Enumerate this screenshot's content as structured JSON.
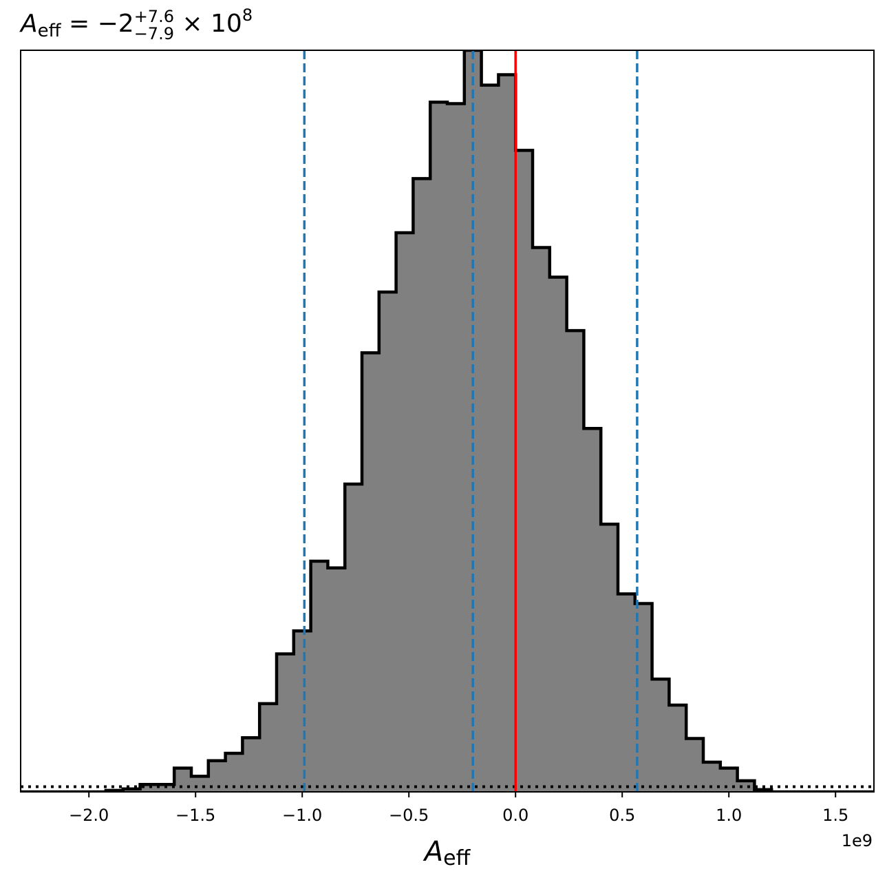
{
  "chart_data": {
    "type": "bar",
    "title": {
      "symbol": "A",
      "symbol_sub": "eff",
      "mid": " = −2",
      "sup": "+7.6",
      "sub": "−7.9",
      "tail": " × 10",
      "exp": "8"
    },
    "xlabel": {
      "symbol": "A",
      "sub": "eff"
    },
    "x_offset_label": "1e9",
    "x_unit_scale": 1000000000,
    "xlim": [
      -2.32,
      1.68
    ],
    "ylim": [
      0,
      1.0
    ],
    "y_axis_labels_shown": false,
    "grid": false,
    "legend": "none",
    "x_ticks": [
      -2.0,
      -1.5,
      -1.0,
      -0.5,
      0.0,
      0.5,
      1.0,
      1.5
    ],
    "x_tick_labels": [
      "−2.0",
      "−1.5",
      "−1.0",
      "−0.5",
      "0.0",
      "0.5",
      "1.0",
      "1.5"
    ],
    "bin_edges": [
      -2.32,
      -2.24,
      -2.16,
      -2.08,
      -2.0,
      -1.92,
      -1.84,
      -1.76,
      -1.68,
      -1.6,
      -1.52,
      -1.44,
      -1.36,
      -1.28,
      -1.2,
      -1.12,
      -1.04,
      -0.96,
      -0.88,
      -0.8,
      -0.72,
      -0.64,
      -0.56,
      -0.48,
      -0.4,
      -0.32,
      -0.24,
      -0.16,
      -0.08,
      0.0,
      0.08,
      0.16,
      0.24,
      0.32,
      0.4,
      0.48,
      0.56,
      0.64,
      0.72,
      0.8,
      0.88,
      0.96,
      1.04,
      1.12,
      1.2,
      1.28,
      1.36,
      1.44,
      1.52,
      1.6,
      1.68
    ],
    "counts": [
      0,
      0,
      0,
      0,
      0,
      0.002,
      0.004,
      0.01,
      0.01,
      0.032,
      0.021,
      0.042,
      0.052,
      0.073,
      0.119,
      0.186,
      0.217,
      0.311,
      0.302,
      0.415,
      0.592,
      0.674,
      0.754,
      0.827,
      0.93,
      0.928,
      1.0,
      0.953,
      0.967,
      0.865,
      0.734,
      0.694,
      0.622,
      0.49,
      0.361,
      0.267,
      0.254,
      0.152,
      0.117,
      0.072,
      0.04,
      0.032,
      0.015,
      0.003,
      0,
      0,
      0,
      0,
      0,
      0
    ],
    "hist_fill": "#808080",
    "hist_edge": "#000000",
    "vlines": [
      {
        "x": -0.99,
        "color": "#1f77b4",
        "style": "dashed"
      },
      {
        "x": -0.2,
        "color": "#1f77b4",
        "style": "dashed"
      },
      {
        "x": 0.57,
        "color": "#1f77b4",
        "style": "dashed"
      },
      {
        "x": 0.0,
        "color": "#ff0000",
        "style": "solid"
      }
    ],
    "hline": {
      "y": 0.007,
      "color": "#000000",
      "style": "dotted"
    }
  }
}
